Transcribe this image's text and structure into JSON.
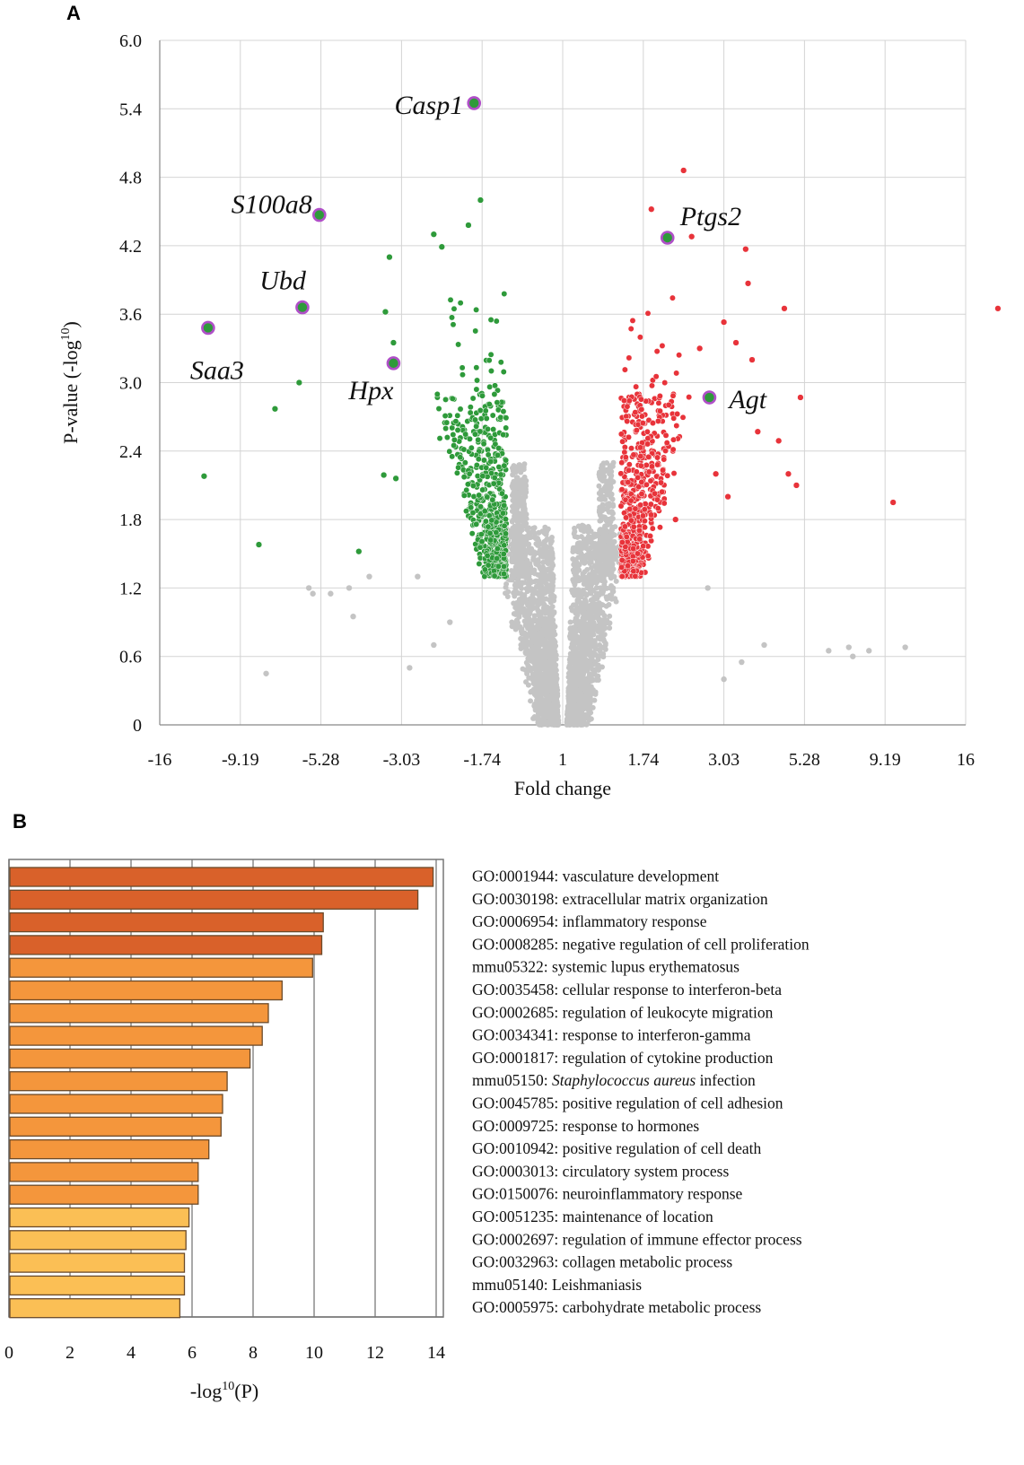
{
  "panel_a": {
    "letter": "A"
  },
  "panel_b": {
    "letter": "B"
  },
  "chart_data": [
    {
      "type": "scatter",
      "title": "",
      "xlabel": "Fold change",
      "ylabel": "P-value (-log",
      "ylabel_sup": "10",
      "ylabel_close": ")",
      "x_tick_labels": [
        "-16",
        "-9.19",
        "-5.28",
        "-3.03",
        "-1.74",
        "1",
        "1.74",
        "3.03",
        "5.28",
        "9.19",
        "16"
      ],
      "y_ticks": [
        "0",
        "0.6",
        "1.2",
        "1.8",
        "2.4",
        "3.0",
        "3.6",
        "4.2",
        "4.8",
        "5.4",
        "6.0"
      ],
      "ylim": [
        0,
        6.0
      ],
      "grid": true,
      "colors": {
        "down": "#2e9a3a",
        "up": "#e8333a",
        "ns": "#c4c4c4",
        "highlight": "#b04fc8"
      },
      "x_scale_note": "x positions given in tick-index units (0 = -16, 5 = 1, 10 = 16)",
      "labeled_genes": [
        {
          "name": "Casp1",
          "x": 3.9,
          "y": 5.45
        },
        {
          "name": "S100a8",
          "x": 1.98,
          "y": 4.47
        },
        {
          "name": "Ubd",
          "x": 1.77,
          "y": 3.66
        },
        {
          "name": "Saa3",
          "x": 0.6,
          "y": 3.48
        },
        {
          "name": "Hpx",
          "x": 2.9,
          "y": 3.17
        },
        {
          "name": "Ptgs2",
          "x": 6.3,
          "y": 4.27
        },
        {
          "name": "Agt",
          "x": 6.82,
          "y": 2.87
        }
      ],
      "outliers_down": [
        [
          0.55,
          2.18
        ],
        [
          1.23,
          1.58
        ],
        [
          1.43,
          2.77
        ],
        [
          1.73,
          3.0
        ],
        [
          2.47,
          1.52
        ],
        [
          2.85,
          4.1
        ],
        [
          2.8,
          3.62
        ],
        [
          2.78,
          2.19
        ],
        [
          2.9,
          3.35
        ],
        [
          3.5,
          4.19
        ],
        [
          3.4,
          4.3
        ],
        [
          3.83,
          4.38
        ],
        [
          3.98,
          4.6
        ],
        [
          2.93,
          2.16
        ]
      ],
      "outliers_up": [
        [
          6.1,
          4.52
        ],
        [
          6.5,
          4.86
        ],
        [
          6.6,
          4.28
        ],
        [
          7.27,
          4.17
        ],
        [
          7.3,
          3.87
        ],
        [
          7.75,
          3.65
        ],
        [
          7.0,
          3.53
        ],
        [
          7.15,
          3.35
        ],
        [
          7.42,
          2.57
        ],
        [
          7.68,
          2.49
        ],
        [
          7.9,
          2.1
        ],
        [
          7.8,
          2.2
        ],
        [
          7.95,
          2.87
        ],
        [
          10.4,
          3.65
        ],
        [
          9.1,
          1.95
        ],
        [
          7.35,
          3.2
        ],
        [
          6.7,
          3.3
        ],
        [
          6.9,
          2.2
        ],
        [
          7.05,
          2.0
        ],
        [
          6.4,
          1.8
        ]
      ],
      "outliers_ns": [
        [
          1.32,
          0.45
        ],
        [
          2.12,
          1.15
        ],
        [
          2.4,
          0.95
        ],
        [
          2.35,
          1.2
        ],
        [
          2.6,
          1.3
        ],
        [
          3.2,
          1.3
        ],
        [
          3.1,
          0.5
        ],
        [
          3.4,
          0.7
        ],
        [
          3.6,
          0.9
        ],
        [
          6.8,
          1.2
        ],
        [
          7.0,
          0.4
        ],
        [
          7.22,
          0.55
        ],
        [
          7.5,
          0.7
        ],
        [
          8.3,
          0.65
        ],
        [
          8.55,
          0.68
        ],
        [
          8.8,
          0.65
        ],
        [
          9.25,
          0.68
        ],
        [
          8.6,
          0.6
        ],
        [
          1.9,
          1.15
        ],
        [
          1.85,
          1.2
        ]
      ]
    },
    {
      "type": "bar",
      "orientation": "horizontal",
      "xlabel": "-log",
      "xlabel_sup": "10",
      "xlabel_close": "(P)",
      "xlim": [
        0,
        14
      ],
      "x_ticks": [
        "0",
        "2",
        "4",
        "6",
        "8",
        "10",
        "12",
        "14"
      ],
      "grid": true,
      "categories": [
        "GO:0001944: vasculature development",
        "GO:0030198: extracellular matrix organization",
        "GO:0006954: inflammatory response",
        "GO:0008285: negative regulation of cell proliferation",
        "mmu05322: systemic lupus erythematosus",
        "GO:0035458: cellular response to interferon-beta",
        "GO:0002685: regulation of leukocyte migration",
        "GO:0034341: response to interferon-gamma",
        "GO:0001817: regulation of cytokine production",
        "mmu05150: Staphylococcus aureus infection",
        "GO:0045785: positive regulation of cell adhesion",
        "GO:0009725: response to hormones",
        "GO:0010942: positive regulation of cell death",
        "GO:0003013: circulatory system process",
        "GO:0150076: neuroinflammatory response",
        "GO:0051235: maintenance of location",
        "GO:0002697: regulation of immune effector process",
        "GO:0032963: collagen metabolic process",
        "mmu05140: Leishmaniasis",
        "GO:0005975: carbohydrate metabolic process"
      ],
      "values": [
        13.9,
        13.4,
        10.3,
        10.25,
        9.95,
        8.95,
        8.5,
        8.3,
        7.9,
        7.15,
        7.0,
        6.95,
        6.55,
        6.2,
        6.2,
        5.9,
        5.8,
        5.75,
        5.75,
        5.6
      ],
      "bar_colors": [
        "#d9612a",
        "#d9612a",
        "#d9612a",
        "#d9612a",
        "#f4963c",
        "#f4963c",
        "#f4963c",
        "#f4963c",
        "#f4963c",
        "#f4963c",
        "#f4963c",
        "#f4963c",
        "#f4963c",
        "#f4963c",
        "#f4963c",
        "#fbbf55",
        "#fbbf55",
        "#fbbf55",
        "#fbbf55",
        "#fbbf55"
      ]
    }
  ]
}
